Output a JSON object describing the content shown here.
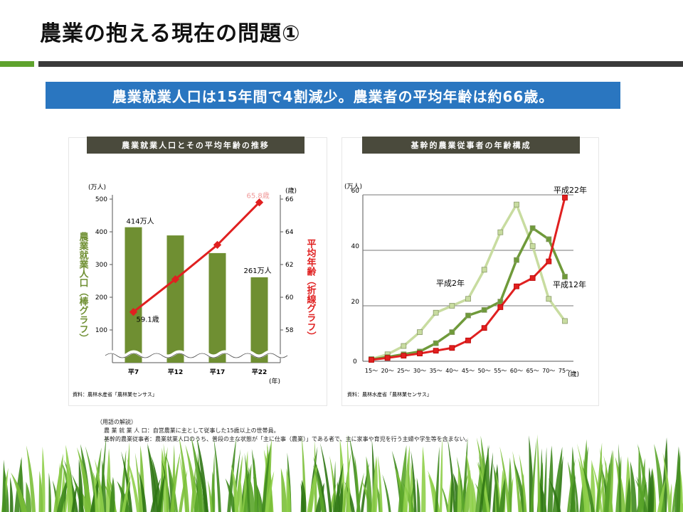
{
  "title": "農業の抱える現在の問題①",
  "banner": "農業就業人口は15年間で4割減少。農業者の平均年齢は約66歳。",
  "colors": {
    "accent_green": "#5fa32e",
    "banner_blue": "#2a76c0",
    "bar_green": "#6f8f32",
    "line_red": "#e02020",
    "dark": "#3a3a3a"
  },
  "chart_data": [
    {
      "type": "bar",
      "title": "農業就業人口とその平均年齢の推移",
      "categories": [
        "平7",
        "平12",
        "平17",
        "平22"
      ],
      "xlabel": "(年)",
      "y_left": {
        "label": "農業就業人口（棒グラフ）",
        "unit": "(万人)",
        "ticks": [
          100,
          200,
          300,
          400,
          500
        ],
        "ylim": [
          0,
          500
        ]
      },
      "y_right": {
        "label": "平均年齢（折線グラフ）",
        "unit": "(歳)",
        "ticks": [
          58,
          60,
          62,
          64,
          66
        ],
        "ylim": [
          56,
          66
        ]
      },
      "series": [
        {
          "name": "農業就業人口",
          "kind": "bar",
          "axis": "left",
          "values": [
            414,
            389,
            335,
            261
          ],
          "color": "#6f8f32"
        },
        {
          "name": "平均年齢",
          "kind": "line",
          "axis": "right",
          "values": [
            59.1,
            61.1,
            63.2,
            65.8
          ],
          "color": "#e02020"
        }
      ],
      "annotations": [
        "414万人",
        "261万人",
        "59.1歳",
        "65.8歳"
      ],
      "source": "資料：農林水産省「農林業センサス」"
    },
    {
      "type": "line",
      "title": "基幹的農業従事者の年齢構成",
      "categories": [
        "15～",
        "20～",
        "25～",
        "30～",
        "35～",
        "40～",
        "45～",
        "50～",
        "55～",
        "60～",
        "65～",
        "70～",
        "75～"
      ],
      "xlabel": "(歳)",
      "ylabel": "(万人)",
      "ylim": [
        0,
        60
      ],
      "yticks": [
        20,
        40,
        60
      ],
      "grid": true,
      "series": [
        {
          "name": "平成2年",
          "values": [
            0.8,
            2.5,
            5.5,
            10.5,
            17.5,
            20,
            22.5,
            33,
            46.5,
            56.5,
            41.5,
            22.5,
            14.5
          ],
          "color": "#c8dca0"
        },
        {
          "name": "平成12年",
          "values": [
            0.6,
            1.5,
            2.5,
            3.5,
            6.5,
            10.5,
            16.5,
            18.5,
            21.5,
            36.5,
            48,
            44,
            30.5
          ],
          "color": "#6f9a3a"
        },
        {
          "name": "平成22年",
          "values": [
            0.5,
            1.2,
            2,
            2.8,
            3.8,
            4.8,
            7.5,
            12,
            19.5,
            27,
            30,
            36,
            59
          ],
          "color": "#e02020"
        }
      ],
      "source": "資料：農林水産省「農林業センサス」"
    }
  ],
  "glossary": {
    "heading": "（用語の解説）",
    "lines": [
      "農 業 就 業 人 口：自営農業に主として従事した15歳以上の世帯員。",
      "基幹的農業従事者：農業就業人口のうち、普段の主な状態が「主に仕事（農業）」である者で、主に家事や育児を行う主婦や学生等を含まない。"
    ]
  }
}
